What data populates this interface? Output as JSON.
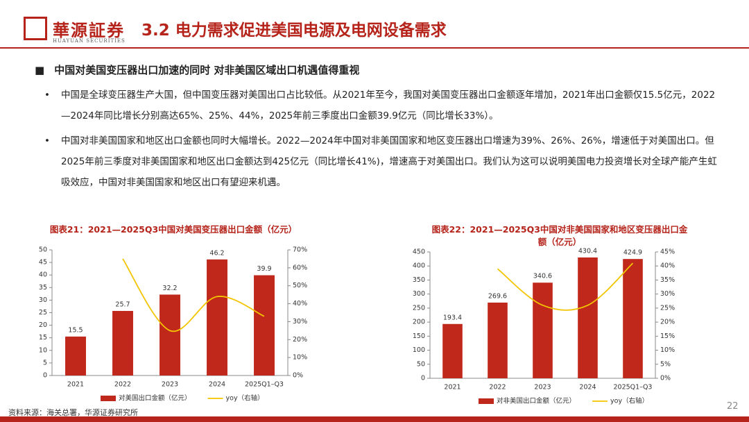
{
  "header": {
    "logo_name": "華源証券",
    "logo_sub": "HUAYUAN SECURITIES",
    "title": "3.2 电力需求促进美国电源及电网设备需求"
  },
  "heading": "中国对美国变压器出口加速的同时 对非美国区域出口机遇值得重视",
  "bullets": [
    "中国是全球变压器生产大国，但中国变压器对美国出口占比较低。从2021年至今，我国对美国变压器出口金额逐年增加，2021年出口金额仅15.5亿元，2022—2024年同比增长分别高达65%、25%、44%，2025年前三季度出口金额39.9亿元（同比增长33%）。",
    "中国对非美国国家和地区出口金额也同时大幅增长。2022—2024年中国对非美国国家和地区变压器出口增速为39%、26%、26%，增速低于对美国出口。但2025年前三季度对非美国国家和地区出口金额达到425亿元（同比增长41%)，增速高于对美国出口。我们认为这可以说明美国电力投资增长对全球产能产生虹吸效应，中国对非美国国家和地区出口有望迎来机遇。"
  ],
  "chart_data": [
    {
      "type": "bar",
      "title": "图表21：2021—2025Q3中国对美国变压器出口金额（亿元）",
      "categories": [
        "2021",
        "2022",
        "2023",
        "2024",
        "2025Q1–Q3"
      ],
      "series": [
        {
          "name": "对美国出口金额（亿元）",
          "type": "bar",
          "color": "#c0281b",
          "values": [
            15.5,
            25.7,
            32.2,
            46.2,
            39.9
          ]
        },
        {
          "name": "yoy（右轴）",
          "type": "line",
          "axis": "y2",
          "color": "#f2c500",
          "values": [
            null,
            65,
            25,
            44,
            33
          ]
        }
      ],
      "ylim": [
        0,
        50
      ],
      "yticks": [
        0,
        5,
        10,
        15,
        20,
        25,
        30,
        35,
        40,
        45,
        50
      ],
      "y2lim": [
        0,
        70
      ],
      "y2ticks": [
        {
          "value": 0,
          "label": "0%"
        },
        {
          "value": 10,
          "label": "10%"
        },
        {
          "value": 20,
          "label": "20%"
        },
        {
          "value": 30,
          "label": "30%"
        },
        {
          "value": 40,
          "label": "40%"
        },
        {
          "value": 50,
          "label": "50%"
        },
        {
          "value": 60,
          "label": "60%"
        },
        {
          "value": 70,
          "label": "70%"
        }
      ],
      "grid": false,
      "legend": "bottom"
    },
    {
      "type": "bar",
      "title": "图表22：2021—2025Q3中国对非美国国家和地区变压器出口金额（亿元）",
      "categories": [
        "2021",
        "2022",
        "2023",
        "2024",
        "2025Q1–Q3"
      ],
      "series": [
        {
          "name": "对非美国出口金额（亿元）",
          "type": "bar",
          "color": "#c0281b",
          "values": [
            193.4,
            269.6,
            340.6,
            430.4,
            424.9
          ]
        },
        {
          "name": "yoy（右轴）",
          "type": "line",
          "axis": "y2",
          "color": "#f2c500",
          "values": [
            null,
            39,
            26,
            26,
            41
          ]
        }
      ],
      "ylim": [
        0,
        450
      ],
      "yticks": [
        0,
        50,
        100,
        150,
        200,
        250,
        300,
        350,
        400,
        450
      ],
      "y2lim": [
        0,
        45
      ],
      "y2ticks": [
        {
          "value": 0,
          "label": "0%"
        },
        {
          "value": 5,
          "label": "5%"
        },
        {
          "value": 10,
          "label": "10%"
        },
        {
          "value": 15,
          "label": "15%"
        },
        {
          "value": 20,
          "label": "20%"
        },
        {
          "value": 25,
          "label": "25%"
        },
        {
          "value": 30,
          "label": "30%"
        },
        {
          "value": 35,
          "label": "35%"
        },
        {
          "value": 40,
          "label": "40%"
        },
        {
          "value": 45,
          "label": "45%"
        }
      ],
      "grid": false,
      "legend": "bottom"
    }
  ],
  "footer": {
    "source": "资料来源：海关总署，华源证券研究所",
    "page": "22"
  }
}
